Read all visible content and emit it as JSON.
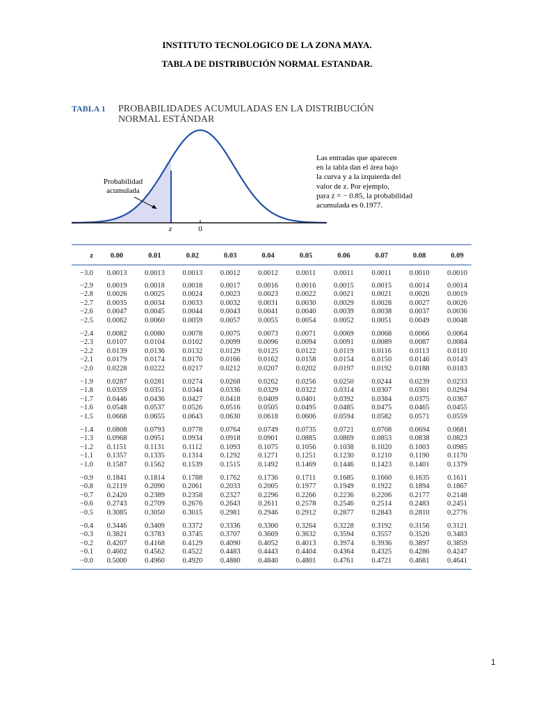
{
  "header": {
    "lines": [
      "INSTITUTO TECNOLOGICO DE LA ZONA MAYA.",
      "TABLA DE DISTRIBUCIÓN NORMAL ESTANDAR."
    ]
  },
  "figure": {
    "label": "TABLA 1",
    "title_lines": [
      "PROBABILIDADES ACUMULADAS EN LA DISTRIBUCIÓN",
      "NORMAL ESTÁNDAR"
    ],
    "area_label_lines": [
      "Probabilidad",
      "acumulada"
    ],
    "z_label": "z",
    "zero_label": "0",
    "description_lines": [
      "Las entradas que aparecen",
      "en la tabla dan el área bajo",
      "la curva y a la izquierda del",
      "valor de z. Por ejemplo,",
      "para z = − 0.85, la probabilidad",
      "acumulada es 0.1977."
    ]
  },
  "table": {
    "columns": [
      "z",
      "0.00",
      "0.01",
      "0.02",
      "0.03",
      "0.04",
      "0.05",
      "0.06",
      "0.07",
      "0.08",
      "0.09"
    ],
    "rows": [
      [
        "−3.0",
        "0.0013",
        "0.0013",
        "0.0013",
        "0.0012",
        "0.0012",
        "0.0011",
        "0.0011",
        "0.0011",
        "0.0010",
        "0.0010"
      ],
      [
        "−2.9",
        "0.0019",
        "0.0018",
        "0.0018",
        "0.0017",
        "0.0016",
        "0.0016",
        "0.0015",
        "0.0015",
        "0.0014",
        "0.0014"
      ],
      [
        "−2.8",
        "0.0026",
        "0.0025",
        "0.0024",
        "0.0023",
        "0.0023",
        "0.0022",
        "0.0021",
        "0.0021",
        "0.0020",
        "0.0019"
      ],
      [
        "−2.7",
        "0.0035",
        "0.0034",
        "0.0033",
        "0.0032",
        "0.0031",
        "0.0030",
        "0.0029",
        "0.0028",
        "0.0027",
        "0.0026"
      ],
      [
        "−2.6",
        "0.0047",
        "0.0045",
        "0.0044",
        "0.0043",
        "0.0041",
        "0.0040",
        "0.0039",
        "0.0038",
        "0.0037",
        "0.0036"
      ],
      [
        "−2.5",
        "0.0062",
        "0.0060",
        "0.0059",
        "0.0057",
        "0.0055",
        "0.0054",
        "0.0052",
        "0.0051",
        "0.0049",
        "0.0048"
      ],
      [
        "−2.4",
        "0.0082",
        "0.0080",
        "0.0078",
        "0.0075",
        "0.0073",
        "0.0071",
        "0.0069",
        "0.0068",
        "0.0066",
        "0.0064"
      ],
      [
        "−2.3",
        "0.0107",
        "0.0104",
        "0.0102",
        "0.0099",
        "0.0096",
        "0.0094",
        "0.0091",
        "0.0089",
        "0.0087",
        "0.0084"
      ],
      [
        "−2.2",
        "0.0139",
        "0.0136",
        "0.0132",
        "0.0129",
        "0.0125",
        "0.0122",
        "0.0119",
        "0.0116",
        "0.0113",
        "0.0110"
      ],
      [
        "−2.1",
        "0.0179",
        "0.0174",
        "0.0170",
        "0.0166",
        "0.0162",
        "0.0158",
        "0.0154",
        "0.0150",
        "0.0146",
        "0.0143"
      ],
      [
        "−2.0",
        "0.0228",
        "0.0222",
        "0.0217",
        "0.0212",
        "0.0207",
        "0.0202",
        "0.0197",
        "0.0192",
        "0.0188",
        "0.0183"
      ],
      [
        "−1.9",
        "0.0287",
        "0.0281",
        "0.0274",
        "0.0268",
        "0.0262",
        "0.0256",
        "0.0250",
        "0.0244",
        "0.0239",
        "0.0233"
      ],
      [
        "−1.8",
        "0.0359",
        "0.0351",
        "0.0344",
        "0.0336",
        "0.0329",
        "0.0322",
        "0.0314",
        "0.0307",
        "0.0301",
        "0.0294"
      ],
      [
        "−1.7",
        "0.0446",
        "0.0436",
        "0.0427",
        "0.0418",
        "0.0409",
        "0.0401",
        "0.0392",
        "0.0384",
        "0.0375",
        "0.0367"
      ],
      [
        "−1.6",
        "0.0548",
        "0.0537",
        "0.0526",
        "0.0516",
        "0.0505",
        "0.0495",
        "0.0485",
        "0.0475",
        "0.0465",
        "0.0455"
      ],
      [
        "−1.5",
        "0.0668",
        "0.0655",
        "0.0643",
        "0.0630",
        "0.0618",
        "0.0606",
        "0.0594",
        "0.0582",
        "0.0571",
        "0.0559"
      ],
      [
        "−1.4",
        "0.0808",
        "0.0793",
        "0.0778",
        "0.0764",
        "0.0749",
        "0.0735",
        "0.0721",
        "0.0708",
        "0.0694",
        "0.0681"
      ],
      [
        "−1.3",
        "0.0968",
        "0.0951",
        "0.0934",
        "0.0918",
        "0.0901",
        "0.0885",
        "0.0869",
        "0.0853",
        "0.0838",
        "0.0823"
      ],
      [
        "−1.2",
        "0.1151",
        "0.1131",
        "0.1112",
        "0.1093",
        "0.1075",
        "0.1056",
        "0.1038",
        "0.1020",
        "0.1003",
        "0.0985"
      ],
      [
        "−1.1",
        "0.1357",
        "0.1335",
        "0.1314",
        "0.1292",
        "0.1271",
        "0.1251",
        "0.1230",
        "0.1210",
        "0.1190",
        "0.1170"
      ],
      [
        "−1.0",
        "0.1587",
        "0.1562",
        "0.1539",
        "0.1515",
        "0.1492",
        "0.1469",
        "0.1446",
        "0.1423",
        "0.1401",
        "0.1379"
      ],
      [
        "−0.9",
        "0.1841",
        "0.1814",
        "0.1788",
        "0.1762",
        "0.1736",
        "0.1711",
        "0.1685",
        "0.1660",
        "0.1635",
        "0.1611"
      ],
      [
        "−0.8",
        "0.2119",
        "0.2090",
        "0.2061",
        "0.2033",
        "0.2005",
        "0.1977",
        "0.1949",
        "0.1922",
        "0.1894",
        "0.1867"
      ],
      [
        "−0.7",
        "0.2420",
        "0.2389",
        "0.2358",
        "0.2327",
        "0.2296",
        "0.2266",
        "0.2236",
        "0.2206",
        "0.2177",
        "0.2148"
      ],
      [
        "−0.6",
        "0.2743",
        "0.2709",
        "0.2676",
        "0.2643",
        "0.2611",
        "0.2578",
        "0.2546",
        "0.2514",
        "0.2483",
        "0.2451"
      ],
      [
        "−0.5",
        "0.3085",
        "0.3050",
        "0.3015",
        "0.2981",
        "0.2946",
        "0.2912",
        "0.2877",
        "0.2843",
        "0.2810",
        "0.2776"
      ],
      [
        "−0.4",
        "0.3446",
        "0.3409",
        "0.3372",
        "0.3336",
        "0.3300",
        "0.3264",
        "0.3228",
        "0.3192",
        "0.3156",
        "0.3121"
      ],
      [
        "−0.3",
        "0.3821",
        "0.3783",
        "0.3745",
        "0.3707",
        "0.3669",
        "0.3632",
        "0.3594",
        "0.3557",
        "0.3520",
        "0.3483"
      ],
      [
        "−0.2",
        "0.4207",
        "0.4168",
        "0.4129",
        "0.4090",
        "0.4052",
        "0.4013",
        "0.3974",
        "0.3936",
        "0.3897",
        "0.3859"
      ],
      [
        "−0.1",
        "0.4602",
        "0.4562",
        "0.4522",
        "0.4483",
        "0.4443",
        "0.4404",
        "0.4364",
        "0.4325",
        "0.4286",
        "0.4247"
      ],
      [
        "−0.0",
        "0.5000",
        "0.4960",
        "0.4920",
        "0.4880",
        "0.4840",
        "0.4801",
        "0.4761",
        "0.4721",
        "0.4681",
        "0.4641"
      ]
    ]
  },
  "footer": {
    "page_number": "1"
  }
}
